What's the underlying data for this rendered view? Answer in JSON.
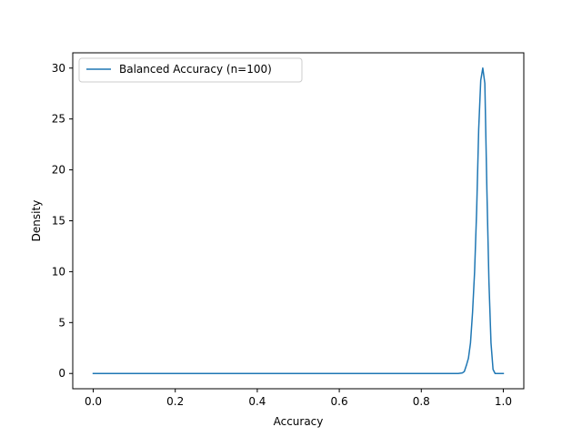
{
  "chart_data": {
    "type": "line",
    "title": "",
    "xlabel": "Accuracy",
    "ylabel": "Density",
    "xlim": [
      -0.05,
      1.05
    ],
    "ylim": [
      -1.5,
      31.5
    ],
    "xticks": [
      0.0,
      0.2,
      0.4,
      0.6,
      0.8,
      1.0
    ],
    "xtick_labels": [
      "0.0",
      "0.2",
      "0.4",
      "0.6",
      "0.8",
      "1.0"
    ],
    "yticks": [
      0,
      5,
      10,
      15,
      20,
      25,
      30
    ],
    "ytick_labels": [
      "0",
      "5",
      "10",
      "15",
      "20",
      "25",
      "30"
    ],
    "grid": false,
    "legend_position": "top-left",
    "series": [
      {
        "name": "Balanced Accuracy (n=100)",
        "color": "#1f77b4",
        "x": [
          0.0,
          0.2,
          0.4,
          0.6,
          0.8,
          0.89,
          0.9,
          0.905,
          0.91,
          0.915,
          0.92,
          0.925,
          0.93,
          0.935,
          0.94,
          0.945,
          0.95,
          0.955,
          0.96,
          0.965,
          0.97,
          0.975,
          0.98,
          0.99,
          1.0
        ],
        "y": [
          0,
          0,
          0,
          0,
          0,
          0,
          0.05,
          0.2,
          0.8,
          1.5,
          3,
          6,
          10,
          16,
          24,
          28.8,
          30,
          28.5,
          18,
          9,
          3,
          0.4,
          0,
          0,
          0
        ]
      }
    ]
  }
}
